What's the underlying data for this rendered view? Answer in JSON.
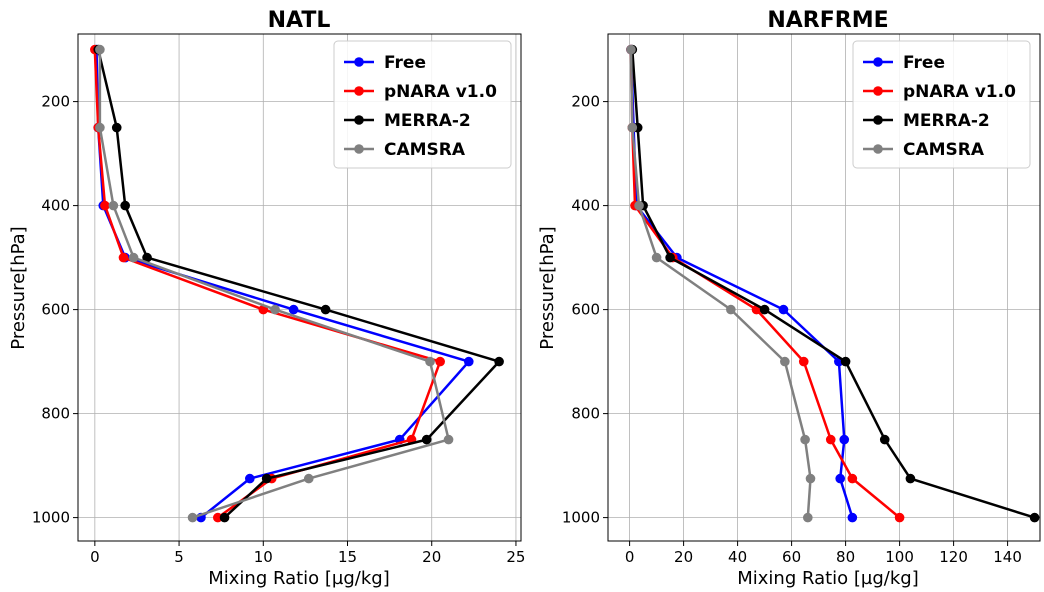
{
  "chart_data": [
    {
      "type": "line",
      "title": "NATL",
      "xlabel": "Mixing Ratio [µg/kg]",
      "ylabel": "Pressure[hPa]",
      "xlim": [
        -1,
        25.3
      ],
      "ylim": [
        1045,
        70
      ],
      "y_inverted": true,
      "xticks": [
        0,
        5,
        10,
        15,
        20,
        25
      ],
      "yticks": [
        200,
        400,
        600,
        800,
        1000
      ],
      "grid": true,
      "legend": "top-right",
      "y": [
        100,
        250,
        400,
        500,
        600,
        700,
        850,
        925,
        1000
      ],
      "series": [
        {
          "name": "Free",
          "color": "#0000ff",
          "x": [
            0.1,
            0.2,
            0.5,
            1.8,
            11.8,
            22.2,
            18.1,
            9.2,
            6.3
          ]
        },
        {
          "name": "pNARA v1.0",
          "color": "#ff0000",
          "x": [
            0.0,
            0.2,
            0.6,
            1.7,
            10.0,
            20.5,
            18.8,
            10.5,
            7.3
          ]
        },
        {
          "name": "MERRA-2",
          "color": "#000000",
          "x": [
            0.2,
            1.3,
            1.8,
            3.1,
            13.7,
            24.0,
            19.7,
            10.2,
            7.7
          ]
        },
        {
          "name": "CAMSRA",
          "color": "#808080",
          "x": [
            0.3,
            0.3,
            1.1,
            2.3,
            10.7,
            19.9,
            21.0,
            12.7,
            5.8
          ]
        }
      ]
    },
    {
      "type": "line",
      "title": "NARFRME",
      "xlabel": "Mixing Ratio [µg/kg]",
      "ylabel": "Pressure[hPa]",
      "xlim": [
        -8,
        152
      ],
      "ylim": [
        1045,
        70
      ],
      "y_inverted": true,
      "xticks": [
        0,
        20,
        40,
        60,
        80,
        100,
        120,
        140
      ],
      "yticks": [
        200,
        400,
        600,
        800,
        1000
      ],
      "grid": true,
      "legend": "top-right",
      "y": [
        100,
        250,
        400,
        500,
        600,
        700,
        850,
        925,
        1000
      ],
      "series": [
        {
          "name": "Free",
          "color": "#0000ff",
          "x": [
            0.5,
            1.5,
            2.5,
            17.5,
            57.0,
            77.5,
            79.5,
            78.0,
            82.5
          ]
        },
        {
          "name": "pNARA v1.0",
          "color": "#ff0000",
          "x": [
            0.5,
            1.0,
            2.0,
            16.0,
            47.0,
            64.5,
            74.5,
            82.5,
            100.0
          ]
        },
        {
          "name": "MERRA-2",
          "color": "#000000",
          "x": [
            1.0,
            3.0,
            5.0,
            15.0,
            50.0,
            80.0,
            94.5,
            104.0,
            150.0
          ]
        },
        {
          "name": "CAMSRA",
          "color": "#808080",
          "x": [
            0.5,
            1.0,
            3.5,
            10.0,
            37.5,
            57.5,
            65.0,
            67.0,
            66.0
          ]
        }
      ]
    }
  ]
}
